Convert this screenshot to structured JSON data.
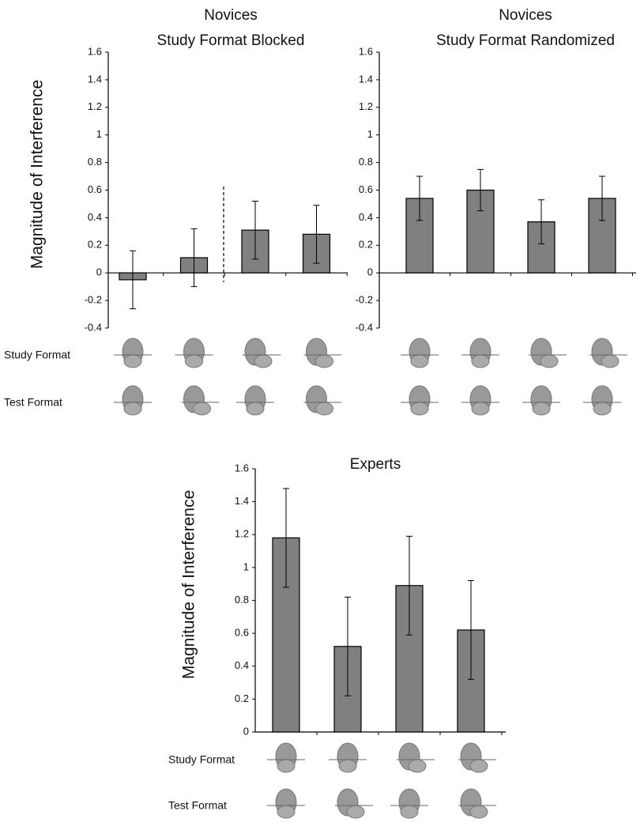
{
  "chart_data": [
    {
      "type": "bar",
      "title": "Novices",
      "subtitle": "Study Format Blocked",
      "y_label": "Magnitude of Interference",
      "row_labels": [
        "Study Format",
        "Test Format"
      ],
      "values": [
        -0.05,
        0.11,
        0.31,
        0.28
      ],
      "errors": [
        0.21,
        0.21,
        0.21,
        0.21
      ],
      "color": "#808080",
      "ylim": [
        -0.4,
        1.6
      ],
      "yticks": [
        -0.4,
        -0.2,
        0,
        0.2,
        0.4,
        0.6,
        0.8,
        1,
        1.2,
        1.4,
        1.6
      ]
    },
    {
      "type": "bar",
      "title": "Novices",
      "subtitle": "Study Format Randomized",
      "values": [
        0.54,
        0.6,
        0.37,
        0.54
      ],
      "errors": [
        0.16,
        0.15,
        0.16,
        0.16
      ],
      "color": "#808080",
      "ylim": [
        -0.4,
        1.6
      ],
      "yticks": [
        -0.4,
        -0.2,
        0,
        0.2,
        0.4,
        0.6,
        0.8,
        1,
        1.2,
        1.4,
        1.6
      ]
    },
    {
      "type": "bar",
      "title": "Experts",
      "y_label": "Magnitude of Interference",
      "row_labels": [
        "Study Format",
        "Test Format"
      ],
      "values": [
        1.18,
        0.52,
        0.89,
        0.62
      ],
      "errors": [
        0.3,
        0.3,
        0.3,
        0.3
      ],
      "color": "#808080",
      "ylim": [
        0,
        1.6
      ],
      "yticks": [
        0,
        0.2,
        0.4,
        0.6,
        0.8,
        1,
        1.2,
        1.4,
        1.6
      ]
    }
  ]
}
